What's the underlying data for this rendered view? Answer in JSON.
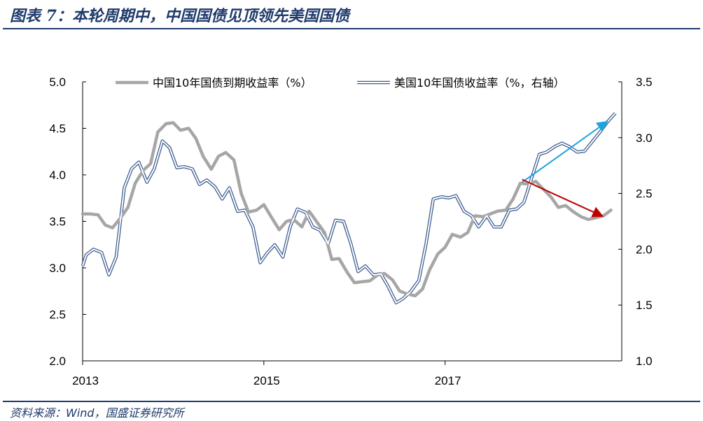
{
  "header": {
    "title": "图表 7：本轮周期中，中国国债见顶领先美国国债"
  },
  "footer": {
    "source": "资料来源：Wind，国盛证券研究所"
  },
  "colors": {
    "china": "#a6a6a6",
    "us_outline": "#3b5b8f",
    "up_arrow": "#1fa3dc",
    "down_arrow": "#c00000",
    "accent": "#1f3a6b"
  },
  "chart_data": {
    "type": "line",
    "title": "",
    "x_range": [
      2013.0,
      2018.95
    ],
    "x_ticks": [
      {
        "value": 2013,
        "label": "2013"
      },
      {
        "value": 2015,
        "label": "2015"
      },
      {
        "value": 2017,
        "label": "2017"
      }
    ],
    "ylim_left": [
      2.0,
      5.0
    ],
    "yticks_left": [
      "5.0",
      "4.5",
      "4.0",
      "3.5",
      "3.0",
      "2.5",
      "2.0"
    ],
    "ylim_right": [
      1.0,
      3.5
    ],
    "yticks_right": [
      "3.5",
      "3.0",
      "2.5",
      "2.0",
      "1.5",
      "1.0"
    ],
    "grid": false,
    "legend_position": "top",
    "series": [
      {
        "name": "中国10年国债到期收益率（%）",
        "axis": "left",
        "x": [
          2013.0,
          2013.08,
          2013.17,
          2013.25,
          2013.33,
          2013.42,
          2013.5,
          2013.58,
          2013.67,
          2013.75,
          2013.83,
          2013.92,
          2014.0,
          2014.08,
          2014.17,
          2014.25,
          2014.33,
          2014.42,
          2014.5,
          2014.58,
          2014.67,
          2014.75,
          2014.83,
          2014.92,
          2015.0,
          2015.08,
          2015.17,
          2015.25,
          2015.33,
          2015.42,
          2015.5,
          2015.58,
          2015.67,
          2015.75,
          2015.83,
          2015.92,
          2016.0,
          2016.08,
          2016.17,
          2016.25,
          2016.33,
          2016.42,
          2016.5,
          2016.58,
          2016.67,
          2016.75,
          2016.83,
          2016.92,
          2017.0,
          2017.08,
          2017.17,
          2017.25,
          2017.33,
          2017.42,
          2017.5,
          2017.58,
          2017.67,
          2017.75,
          2017.83,
          2017.92,
          2018.0,
          2018.08,
          2018.17,
          2018.25,
          2018.33,
          2018.42,
          2018.5,
          2018.58,
          2018.67,
          2018.75,
          2018.83
        ],
        "values": [
          3.58,
          3.58,
          3.57,
          3.46,
          3.43,
          3.54,
          3.65,
          3.91,
          4.05,
          4.12,
          4.46,
          4.55,
          4.56,
          4.48,
          4.5,
          4.39,
          4.2,
          4.06,
          4.2,
          4.24,
          4.16,
          3.8,
          3.6,
          3.62,
          3.68,
          3.55,
          3.41,
          3.5,
          3.52,
          3.44,
          3.61,
          3.5,
          3.38,
          3.09,
          3.1,
          2.95,
          2.84,
          2.85,
          2.86,
          2.92,
          2.94,
          2.87,
          2.75,
          2.72,
          2.7,
          2.77,
          2.98,
          3.15,
          3.22,
          3.36,
          3.33,
          3.38,
          3.56,
          3.55,
          3.58,
          3.61,
          3.62,
          3.74,
          3.91,
          3.9,
          3.93,
          3.85,
          3.76,
          3.65,
          3.67,
          3.6,
          3.55,
          3.52,
          3.54,
          3.56,
          3.62
        ]
      },
      {
        "name": "美国10年国债收益率（%，右轴）",
        "axis": "right",
        "x": [
          2013.0,
          2013.04,
          2013.12,
          2013.21,
          2013.29,
          2013.37,
          2013.46,
          2013.54,
          2013.62,
          2013.71,
          2013.79,
          2013.88,
          2013.96,
          2014.04,
          2014.12,
          2014.21,
          2014.29,
          2014.37,
          2014.46,
          2014.54,
          2014.62,
          2014.71,
          2014.79,
          2014.88,
          2014.96,
          2015.04,
          2015.12,
          2015.21,
          2015.29,
          2015.37,
          2015.46,
          2015.54,
          2015.62,
          2015.71,
          2015.79,
          2015.88,
          2015.96,
          2016.04,
          2016.12,
          2016.21,
          2016.29,
          2016.37,
          2016.46,
          2016.54,
          2016.62,
          2016.71,
          2016.79,
          2016.87,
          2016.96,
          2017.04,
          2017.12,
          2017.21,
          2017.29,
          2017.37,
          2017.46,
          2017.54,
          2017.62,
          2017.71,
          2017.79,
          2017.87,
          2017.96,
          2018.04,
          2018.12,
          2018.21,
          2018.29,
          2018.37,
          2018.46,
          2018.54,
          2018.62,
          2018.71,
          2018.79,
          2018.88
        ],
        "values": [
          1.85,
          1.95,
          2.0,
          1.97,
          1.77,
          1.93,
          2.55,
          2.72,
          2.78,
          2.6,
          2.72,
          2.97,
          2.91,
          2.73,
          2.74,
          2.72,
          2.58,
          2.62,
          2.56,
          2.45,
          2.55,
          2.34,
          2.35,
          2.2,
          1.88,
          1.97,
          2.04,
          1.93,
          2.2,
          2.36,
          2.33,
          2.2,
          2.17,
          2.05,
          2.26,
          2.25,
          2.05,
          1.8,
          1.85,
          1.77,
          1.78,
          1.67,
          1.52,
          1.56,
          1.62,
          1.72,
          2.05,
          2.45,
          2.47,
          2.46,
          2.48,
          2.34,
          2.3,
          2.2,
          2.3,
          2.2,
          2.2,
          2.35,
          2.36,
          2.42,
          2.65,
          2.85,
          2.87,
          2.92,
          2.95,
          2.92,
          2.87,
          2.88,
          2.96,
          3.05,
          3.14,
          3.22
        ]
      }
    ],
    "annotations": [
      {
        "type": "arrow",
        "color": "up_arrow",
        "axis": "right",
        "from": [
          2017.85,
          2.6
        ],
        "to": [
          2018.8,
          3.15
        ]
      },
      {
        "type": "arrow",
        "color": "down_arrow",
        "axis": "left",
        "from": [
          2017.85,
          3.95
        ],
        "to": [
          2018.75,
          3.55
        ]
      }
    ]
  }
}
